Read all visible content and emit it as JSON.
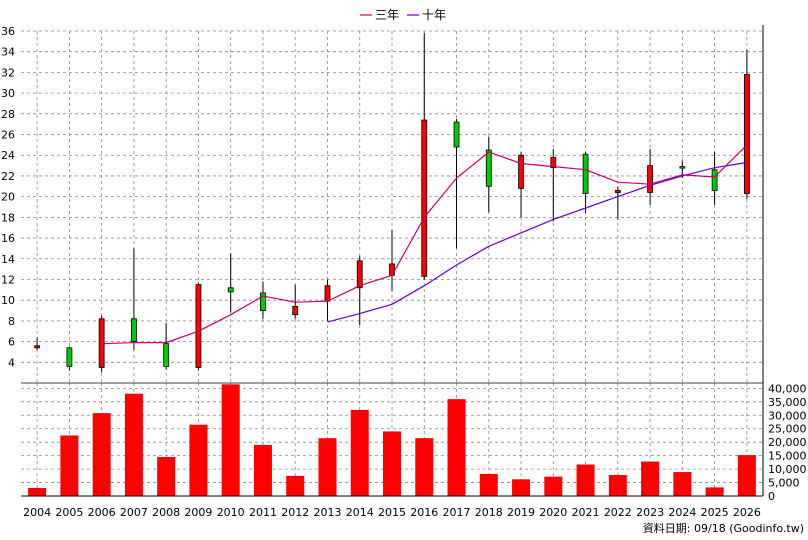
{
  "legend": [
    {
      "label": "三年",
      "color": "#cc0066"
    },
    {
      "label": "十年",
      "color": "#6600cc"
    }
  ],
  "footer": "資料日期: 09/18  (Goodinfo.tw)",
  "colors": {
    "up": "#ff0000",
    "down": "#00cc00",
    "volume": "#ff0000",
    "grid": "#888888"
  },
  "chart_data": [
    {
      "type": "candlestick",
      "ylim": [
        2,
        36
      ],
      "yticks": [
        4,
        6,
        8,
        10,
        12,
        14,
        16,
        18,
        20,
        22,
        24,
        26,
        28,
        30,
        32,
        34,
        36
      ],
      "grid": true,
      "legend_position": "top-center",
      "categories": [
        "2004",
        "2005",
        "2006",
        "2007",
        "2008",
        "2009",
        "2010",
        "2011",
        "2012",
        "2013",
        "2014",
        "2015",
        "2016",
        "2017",
        "2018",
        "2019",
        "2020",
        "2021",
        "2022",
        "2023",
        "2024",
        "2025",
        "2026"
      ],
      "candles": [
        {
          "o": 5.4,
          "h": 6.4,
          "l": 5.2,
          "c": 5.6
        },
        {
          "o": 5.4,
          "h": 5.5,
          "l": 3.2,
          "c": 3.6
        },
        {
          "o": 3.5,
          "h": 8.5,
          "l": 3.0,
          "c": 8.2
        },
        {
          "o": 8.2,
          "h": 15.0,
          "l": 5.2,
          "c": 6.0
        },
        {
          "o": 5.8,
          "h": 7.8,
          "l": 3.3,
          "c": 3.6
        },
        {
          "o": 3.5,
          "h": 11.7,
          "l": 3.2,
          "c": 11.5
        },
        {
          "o": 11.2,
          "h": 14.5,
          "l": 8.8,
          "c": 10.8
        },
        {
          "o": 10.7,
          "h": 11.8,
          "l": 8.2,
          "c": 9.0
        },
        {
          "o": 8.6,
          "h": 11.5,
          "l": 8.2,
          "c": 9.4
        },
        {
          "o": 9.9,
          "h": 12.0,
          "l": 8.0,
          "c": 11.4
        },
        {
          "o": 11.2,
          "h": 14.3,
          "l": 7.6,
          "c": 13.8
        },
        {
          "o": 12.4,
          "h": 16.8,
          "l": 10.9,
          "c": 13.5
        },
        {
          "o": 12.3,
          "h": 35.8,
          "l": 12.0,
          "c": 27.4
        },
        {
          "o": 27.2,
          "h": 27.5,
          "l": 15.0,
          "c": 24.8
        },
        {
          "o": 24.5,
          "h": 25.8,
          "l": 18.5,
          "c": 21.0
        },
        {
          "o": 20.8,
          "h": 24.3,
          "l": 18.0,
          "c": 24.0
        },
        {
          "o": 22.8,
          "h": 24.6,
          "l": 17.6,
          "c": 23.8
        },
        {
          "o": 24.1,
          "h": 24.3,
          "l": 18.4,
          "c": 20.3
        },
        {
          "o": 20.4,
          "h": 21.0,
          "l": 17.8,
          "c": 20.6
        },
        {
          "o": 20.4,
          "h": 24.6,
          "l": 19.2,
          "c": 23.0
        },
        {
          "o": 22.9,
          "h": 23.5,
          "l": 21.8,
          "c": 22.8
        },
        {
          "o": 22.6,
          "h": 24.3,
          "l": 19.2,
          "c": 20.6
        },
        {
          "o": 20.3,
          "h": 34.2,
          "l": 19.8,
          "c": 31.8
        }
      ],
      "series": [
        {
          "name": "三年",
          "values": [
            null,
            null,
            5.8,
            5.9,
            5.9,
            7.0,
            8.6,
            10.4,
            9.8,
            9.9,
            11.4,
            12.4,
            18.0,
            21.8,
            24.3,
            23.2,
            22.9,
            22.6,
            21.4,
            21.2,
            22.1,
            21.9,
            25.0
          ]
        },
        {
          "name": "十年",
          "values": [
            null,
            null,
            null,
            null,
            null,
            null,
            null,
            null,
            null,
            7.9,
            8.7,
            9.6,
            11.4,
            13.4,
            15.2,
            16.5,
            17.8,
            18.9,
            20.0,
            21.1,
            22.0,
            22.8,
            23.3
          ]
        }
      ]
    },
    {
      "type": "bar",
      "ylim": [
        0,
        42000
      ],
      "yticks": [
        0,
        5000,
        10000,
        15000,
        20000,
        25000,
        30000,
        35000,
        40000
      ],
      "ytick_labels": [
        "0",
        "5,000",
        "10,000",
        "15,000",
        "20,000",
        "25,000",
        "30,000",
        "35,000",
        "40,000"
      ],
      "grid": true,
      "categories": [
        "2004",
        "2005",
        "2006",
        "2007",
        "2008",
        "2009",
        "2010",
        "2011",
        "2012",
        "2013",
        "2014",
        "2015",
        "2016",
        "2017",
        "2018",
        "2019",
        "2020",
        "2021",
        "2022",
        "2023",
        "2024",
        "2025",
        "2026"
      ],
      "values": [
        3000,
        22500,
        30800,
        38000,
        14500,
        26500,
        41500,
        19000,
        7500,
        21500,
        32000,
        24000,
        21500,
        36000,
        8200,
        6200,
        7200,
        11700,
        7800,
        12800,
        8900,
        3200,
        15200
      ]
    }
  ]
}
